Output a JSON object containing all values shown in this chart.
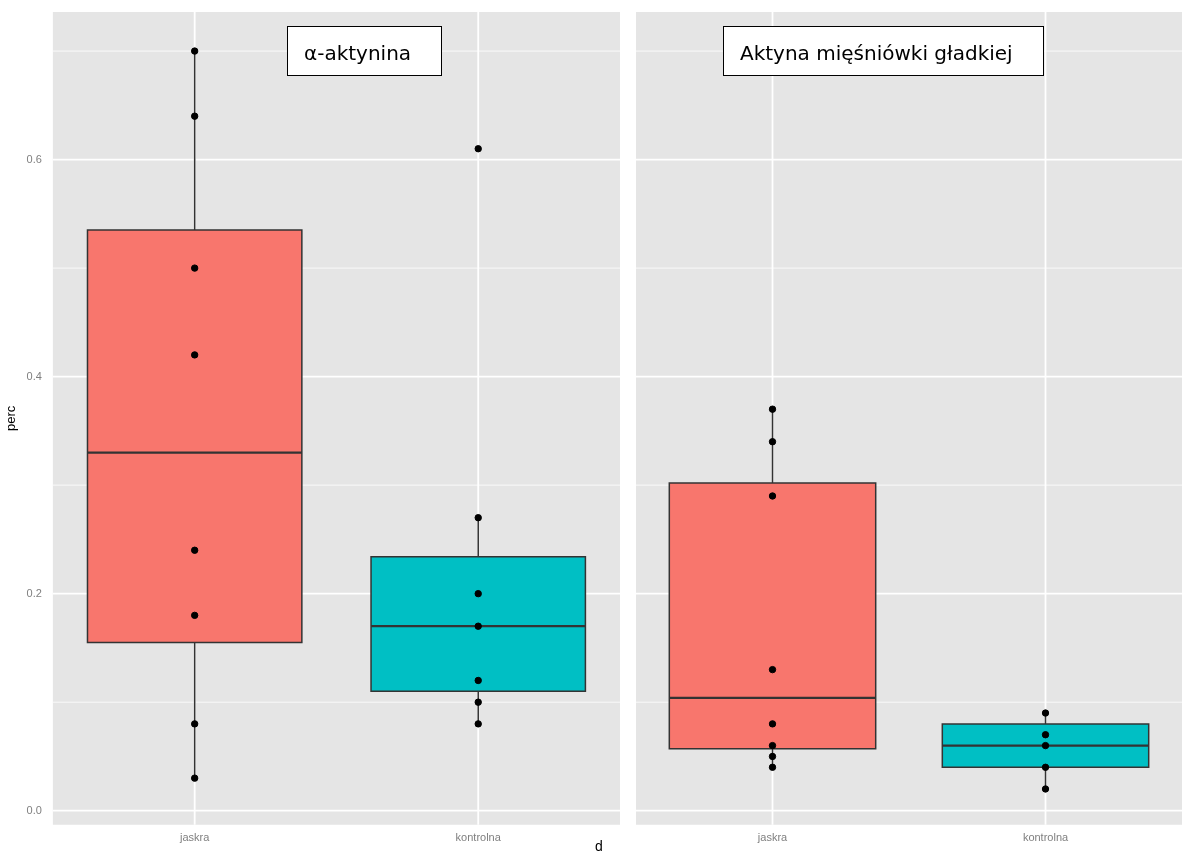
{
  "chart_data": [
    {
      "type": "box",
      "title": "α-aktynina",
      "xlabel": "d",
      "ylabel": "perc",
      "categories": [
        "jaskra",
        "kontrolna"
      ],
      "boxes": [
        {
          "low": 0.03,
          "q1": 0.155,
          "median": 0.33,
          "q3": 0.535,
          "high": 0.7
        },
        {
          "low": 0.08,
          "q1": 0.11,
          "median": 0.17,
          "q3": 0.234,
          "high": 0.27
        }
      ],
      "colors": [
        "#f8766d",
        "#00bfc4"
      ],
      "series": [
        {
          "type": "scatter",
          "color": "#000000",
          "x": [
            "jaskra",
            "jaskra",
            "jaskra",
            "jaskra",
            "jaskra",
            "jaskra",
            "jaskra",
            "jaskra",
            "kontrolna",
            "kontrolna",
            "kontrolna",
            "kontrolna",
            "kontrolna",
            "kontrolna",
            "kontrolna"
          ],
          "values": [
            0.7,
            0.64,
            0.5,
            0.42,
            0.24,
            0.18,
            0.08,
            0.03,
            0.61,
            0.27,
            0.2,
            0.17,
            0.12,
            0.1,
            0.08
          ]
        }
      ],
      "ylim": [
        -0.013,
        0.736
      ],
      "yticks": [
        {
          "value": 0,
          "label": "0.0"
        },
        {
          "value": 0.1,
          "label": null
        },
        0.2,
        {
          "value": 0.3,
          "label": null
        },
        0.4,
        {
          "value": 0.5,
          "label": null
        },
        0.6,
        {
          "value": 0.7,
          "label": null
        }
      ],
      "grid": true,
      "marker": "circle"
    },
    {
      "type": "box",
      "title": "Aktyna mięśniówki gładkiej",
      "categories": [
        "jaskra",
        "kontrolna"
      ],
      "boxes": [
        {
          "low": 0.04,
          "q1": 0.057,
          "median": 0.104,
          "q3": 0.302,
          "high": 0.37
        },
        {
          "low": 0.02,
          "q1": 0.04,
          "median": 0.06,
          "q3": 0.08,
          "high": 0.09
        }
      ],
      "colors": [
        "#f8766d",
        "#00bfc4"
      ],
      "series": [
        {
          "type": "scatter",
          "color": "#000000",
          "x": [
            "jaskra",
            "jaskra",
            "jaskra",
            "jaskra",
            "jaskra",
            "jaskra",
            "jaskra",
            "jaskra",
            "kontrolna",
            "kontrolna",
            "kontrolna",
            "kontrolna",
            "kontrolna"
          ],
          "values": [
            0.37,
            0.34,
            0.29,
            0.13,
            0.08,
            0.06,
            0.05,
            0.04,
            0.09,
            0.07,
            0.06,
            0.04,
            0.02
          ]
        }
      ],
      "ylim": [
        -0.013,
        0.736
      ],
      "yticks": [
        0,
        {
          "value": 0.1,
          "label": null
        },
        0.2,
        {
          "value": 0.3,
          "label": null
        },
        0.4,
        {
          "value": 0.5,
          "label": null
        },
        0.6,
        {
          "value": 0.7,
          "label": null
        }
      ],
      "tick_labels": "x",
      "grid": true,
      "marker": "circle"
    }
  ]
}
